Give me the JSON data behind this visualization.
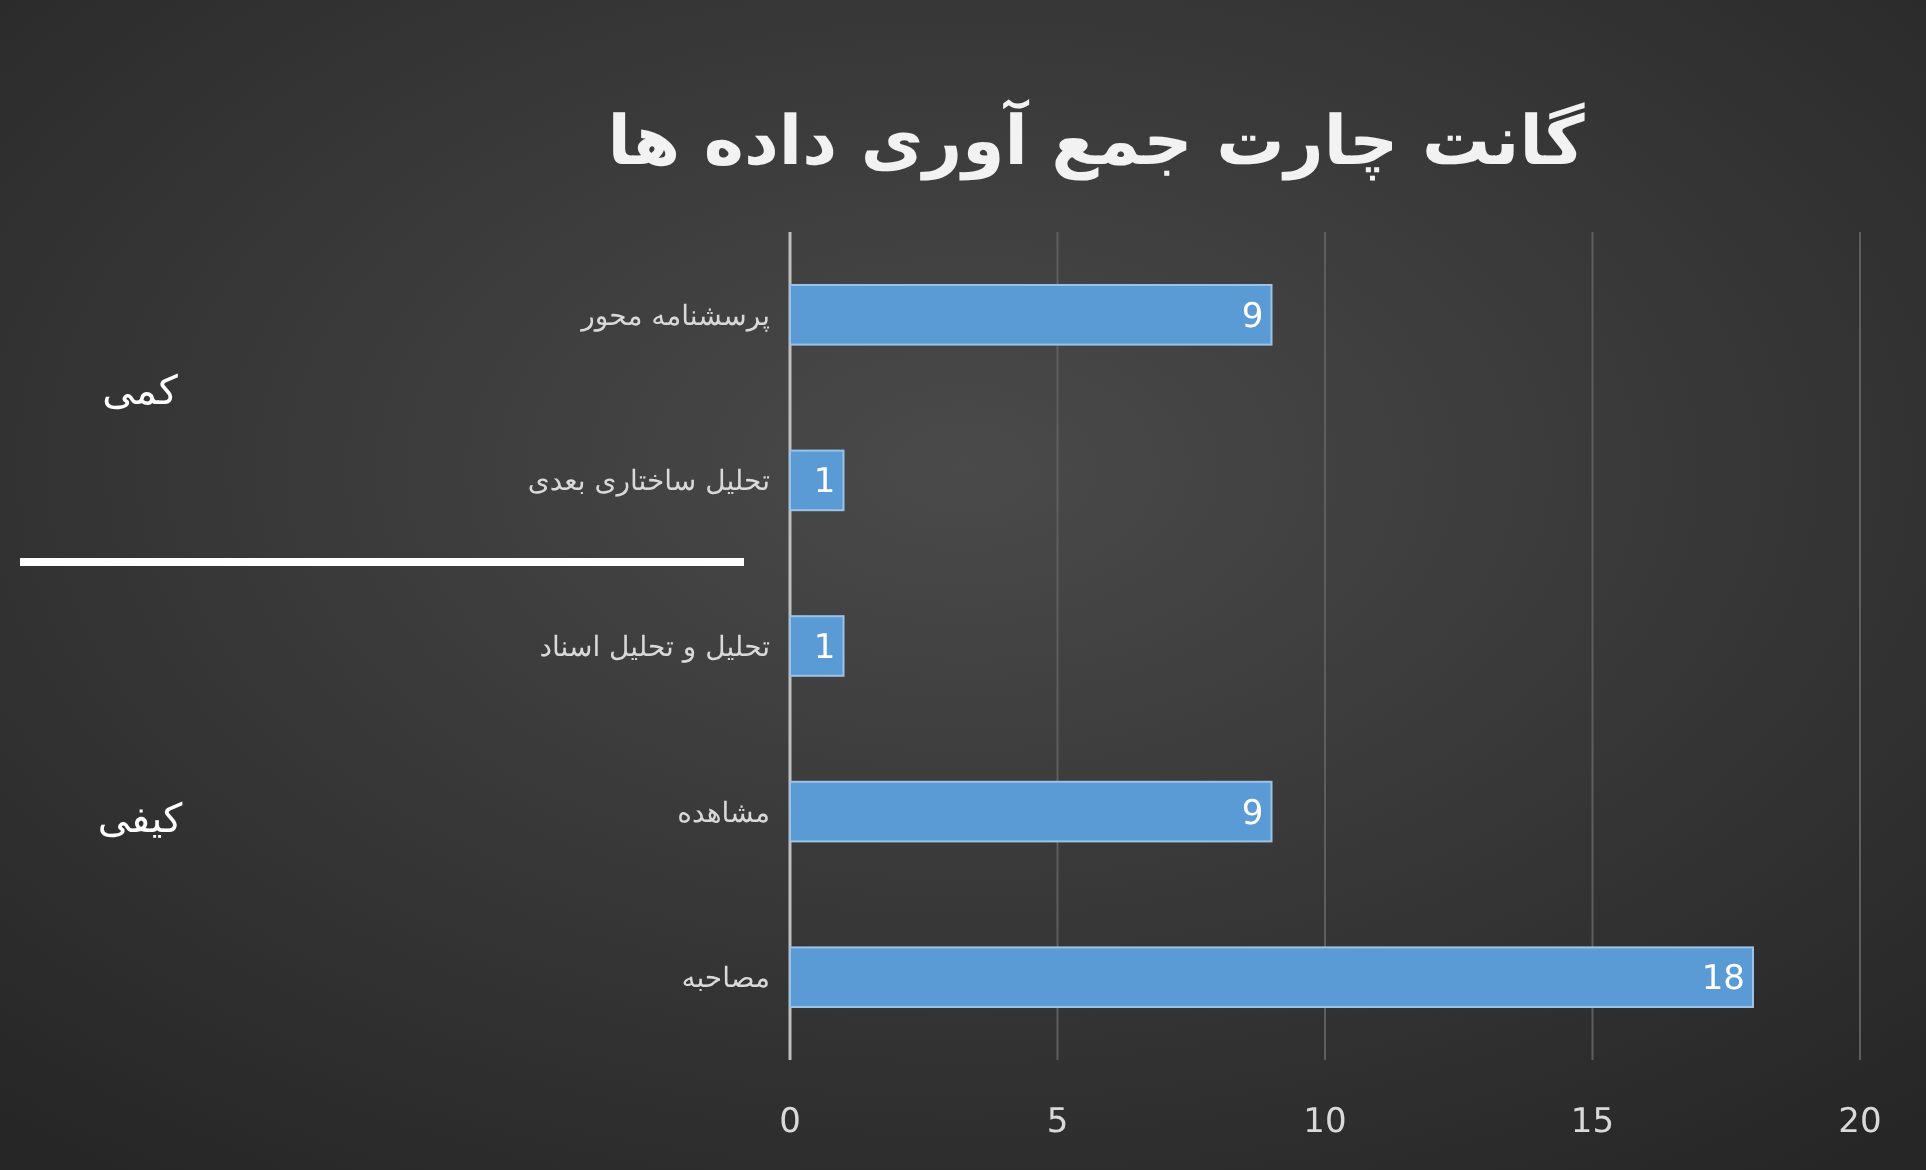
{
  "chart_data": {
    "type": "bar",
    "orientation": "horizontal",
    "title": "گانت چارت جمع آوری داده ها",
    "categories": [
      "پرسشنامه محور",
      "تحلیل ساختاری بعدی",
      "تحلیل و تحلیل اسناد",
      "مشاهده",
      "مصاحبه"
    ],
    "values": [
      9,
      1,
      1,
      9,
      18
    ],
    "color": "#5b9bd5",
    "xlim": [
      0,
      20
    ],
    "xticks": [
      0,
      5,
      10,
      15,
      20
    ],
    "grid": "x",
    "data_labels": true,
    "annotations": [
      "کمی",
      "کیفی"
    ]
  }
}
